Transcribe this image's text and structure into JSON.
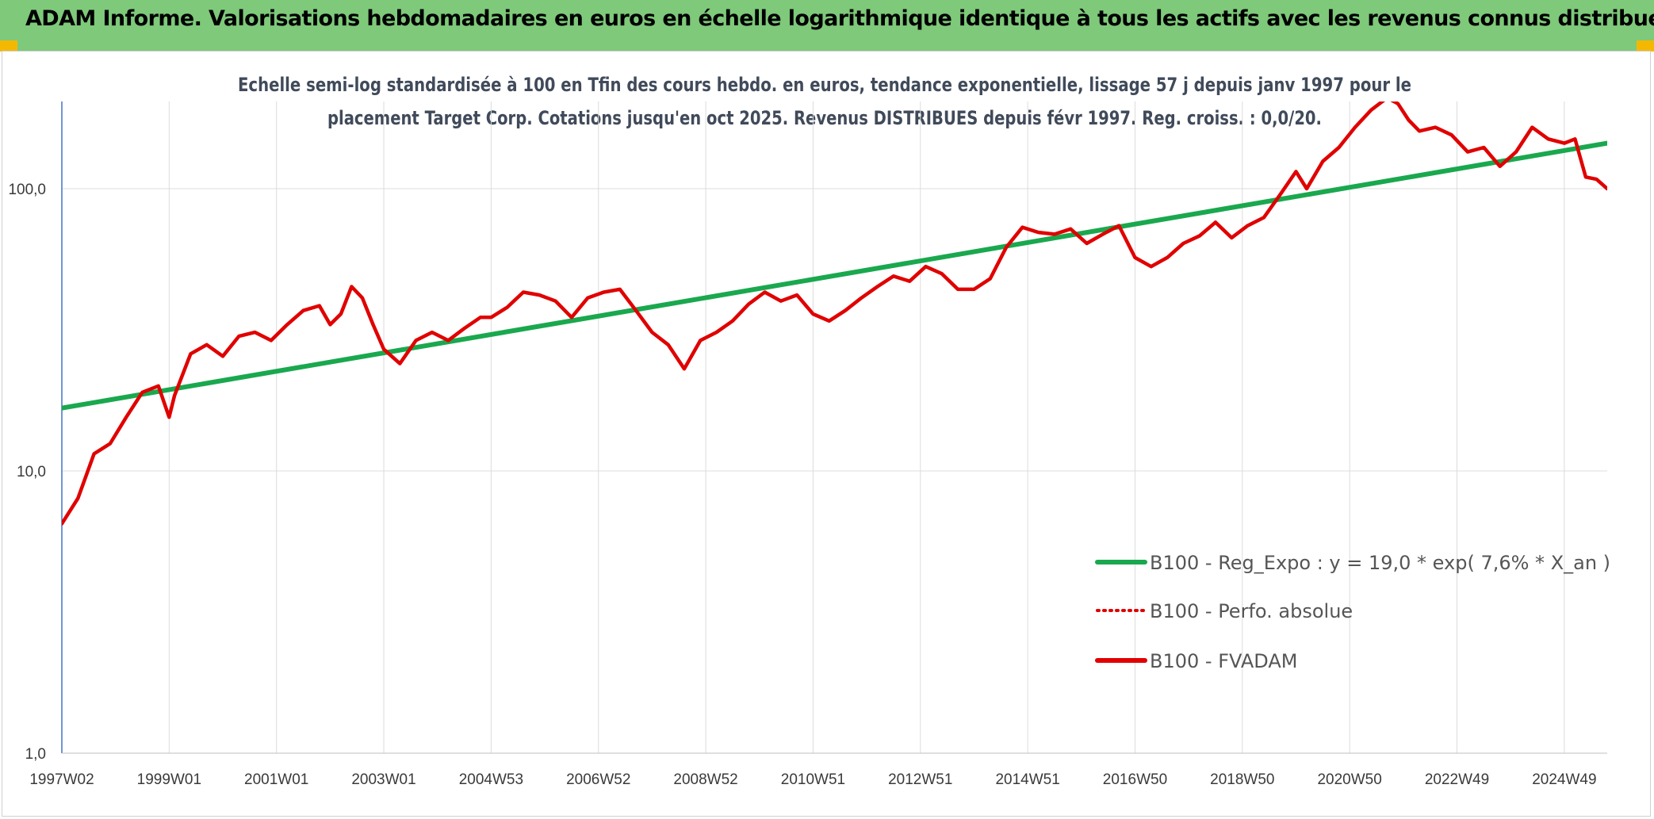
{
  "header": {
    "title": "ADAM Informe. Valorisations hebdomadaires en euros en échelle logarithmique identique à tous les actifs avec les revenus connus distribués"
  },
  "chart_data": {
    "type": "line",
    "subtitle_line1": "Echelle semi-log standardisée à 100 en Tfin des cours hebdo. en euros, tendance exponentielle, lissage 57 j depuis janv 1997 pour le",
    "subtitle_line2": "placement Target Corp. Cotations jusqu'en oct 2025. Revenus DISTRIBUES depuis févr 1997. Reg. croiss. : 0,0/20.",
    "y_scale": "log",
    "ylim": [
      1,
      200
    ],
    "xlim": [
      1997.0,
      2025.8
    ],
    "y_ticks": [
      {
        "value": 1,
        "label": "1,0"
      },
      {
        "value": 10,
        "label": "10,0"
      },
      {
        "value": 100,
        "label": "100,0"
      }
    ],
    "x_ticks": [
      {
        "value": 1997.0,
        "label": "1997W02"
      },
      {
        "value": 1999.0,
        "label": "1999W01"
      },
      {
        "value": 2001.0,
        "label": "2001W01"
      },
      {
        "value": 2003.0,
        "label": "2003W01"
      },
      {
        "value": 2005.0,
        "label": "2004W53"
      },
      {
        "value": 2007.0,
        "label": "2006W52"
      },
      {
        "value": 2009.0,
        "label": "2008W52"
      },
      {
        "value": 2011.0,
        "label": "2010W51"
      },
      {
        "value": 2013.0,
        "label": "2012W51"
      },
      {
        "value": 2015.0,
        "label": "2014W51"
      },
      {
        "value": 2017.0,
        "label": "2016W50"
      },
      {
        "value": 2019.0,
        "label": "2018W50"
      },
      {
        "value": 2021.0,
        "label": "2020W50"
      },
      {
        "value": 2023.0,
        "label": "2022W49"
      },
      {
        "value": 2025.0,
        "label": "2024W49"
      }
    ],
    "grid": "vertical and horizontal",
    "legend_position": "bottom-right",
    "series": [
      {
        "name": "B100 - Reg_Expo : y = 19,0 * exp( 7,6% *  X_an )",
        "color": "#1aa84e",
        "style": "solid",
        "x": [
          1997.0,
          2025.8
        ],
        "y": [
          16.7,
          145
        ]
      },
      {
        "name": "B100 - Perfo. absolue",
        "color": "#e00000",
        "style": "dotted",
        "x": [],
        "y": []
      },
      {
        "name": "B100 - FVADAM",
        "color": "#e00000",
        "style": "solid",
        "x": [
          1997.0,
          1997.3,
          1997.6,
          1997.9,
          1998.2,
          1998.5,
          1998.8,
          1999.0,
          1999.1,
          1999.4,
          1999.7,
          2000.0,
          2000.3,
          2000.6,
          2000.9,
          2001.2,
          2001.5,
          2001.8,
          2002.0,
          2002.2,
          2002.4,
          2002.6,
          2002.8,
          2003.0,
          2003.3,
          2003.6,
          2003.9,
          2004.2,
          2004.5,
          2004.8,
          2005.0,
          2005.3,
          2005.6,
          2005.9,
          2006.2,
          2006.5,
          2006.8,
          2007.1,
          2007.4,
          2007.7,
          2008.0,
          2008.3,
          2008.6,
          2008.9,
          2009.2,
          2009.5,
          2009.8,
          2010.1,
          2010.4,
          2010.7,
          2011.0,
          2011.3,
          2011.6,
          2011.9,
          2012.2,
          2012.5,
          2012.8,
          2013.1,
          2013.4,
          2013.7,
          2014.0,
          2014.3,
          2014.6,
          2014.9,
          2015.2,
          2015.5,
          2015.8,
          2016.1,
          2016.4,
          2016.7,
          2017.0,
          2017.3,
          2017.6,
          2017.9,
          2018.2,
          2018.5,
          2018.8,
          2019.1,
          2019.4,
          2019.7,
          2020.0,
          2020.2,
          2020.5,
          2020.8,
          2021.1,
          2021.4,
          2021.7,
          2021.9,
          2022.1,
          2022.3,
          2022.6,
          2022.9,
          2023.2,
          2023.5,
          2023.8,
          2024.1,
          2024.4,
          2024.7,
          2025.0,
          2025.2,
          2025.4,
          2025.6,
          2025.8
        ],
        "y": [
          6.5,
          8.0,
          11.5,
          12.5,
          15.5,
          19.0,
          20.0,
          15.5,
          18.5,
          26.0,
          28.0,
          25.5,
          30.0,
          31.0,
          29.0,
          33.0,
          37.0,
          38.5,
          33.0,
          36.0,
          45.0,
          41.0,
          33.0,
          27.0,
          24.0,
          29.0,
          31.0,
          29.0,
          32.0,
          35.0,
          35.0,
          38.0,
          43.0,
          42.0,
          40.0,
          35.0,
          41.0,
          43.0,
          44.0,
          37.0,
          31.0,
          28.0,
          23.0,
          29.0,
          31.0,
          34.0,
          39.0,
          43.0,
          40.0,
          42.0,
          36.0,
          34.0,
          37.0,
          41.0,
          45.0,
          49.0,
          47.0,
          53.0,
          50.0,
          44.0,
          44.0,
          48.0,
          62.0,
          73.0,
          70.0,
          69.0,
          72.0,
          64.0,
          69.0,
          74.0,
          57.0,
          53.0,
          57.0,
          64.0,
          68.0,
          76.0,
          67.0,
          74.0,
          79.0,
          95.0,
          115.0,
          100.0,
          125.0,
          140.0,
          165.0,
          190.0,
          210.0,
          200.0,
          175.0,
          160.0,
          165.0,
          155.0,
          135.0,
          140.0,
          120.0,
          135.0,
          165.0,
          150.0,
          145.0,
          150.0,
          110.0,
          108.0,
          100.0
        ]
      }
    ]
  }
}
